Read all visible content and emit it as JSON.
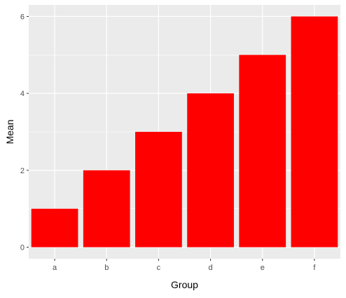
{
  "chart_data": {
    "type": "bar",
    "title": "",
    "xlabel": "Group",
    "ylabel": "Mean",
    "categories": [
      "a",
      "b",
      "c",
      "d",
      "e",
      "f"
    ],
    "values": [
      1,
      2,
      3,
      4,
      5,
      6
    ],
    "ylim": [
      -0.3,
      6.3
    ],
    "yticks": [
      0,
      2,
      4,
      6
    ],
    "grid": true,
    "legend": "none",
    "bar_color": "#ff0000",
    "panel_background": "#ebebeb",
    "gridline_color": "#ffffff"
  }
}
